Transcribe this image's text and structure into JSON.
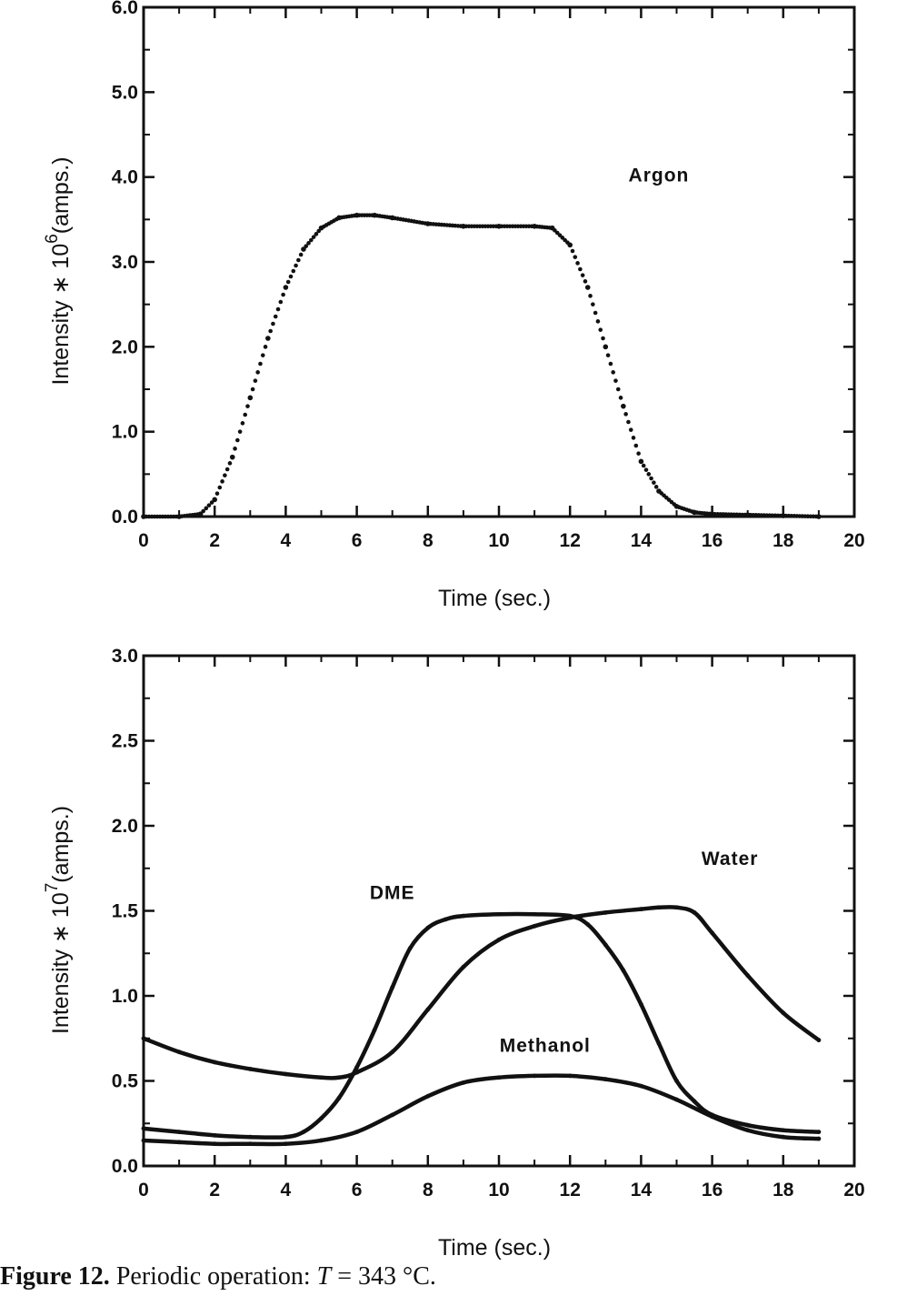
{
  "caption": {
    "label": "Figure 12.",
    "text": "Periodic operation:",
    "variable": "T",
    "value": "= 343 °C."
  },
  "chart_data": [
    {
      "type": "scatter",
      "xlabel": "Time (sec.)",
      "ylabel_parts": {
        "before": "Intensity  ∗ 10",
        "exponent": "6",
        "after": "(amps.)"
      },
      "xlim": [
        0,
        20
      ],
      "ylim": [
        0,
        6
      ],
      "xticks": [
        0,
        2,
        4,
        6,
        8,
        10,
        12,
        14,
        16,
        18,
        20
      ],
      "yticks": [
        0.0,
        1.0,
        2.0,
        3.0,
        4.0,
        5.0,
        6.0
      ],
      "ytick_labels": [
        "0.0",
        "1.0",
        "2.0",
        "3.0",
        "4.0",
        "5.0",
        "6.0"
      ],
      "grid": false,
      "series": [
        {
          "name": "Argon",
          "x": [
            0,
            1.0,
            1.6,
            2.0,
            2.5,
            3.0,
            3.5,
            4.0,
            4.5,
            5.0,
            5.5,
            6.0,
            6.5,
            7.0,
            8.0,
            9.0,
            10.0,
            11.0,
            11.5,
            12.0,
            12.5,
            13.0,
            13.5,
            14.0,
            14.5,
            15.0,
            15.5,
            16.0,
            17.0,
            18.0,
            19.0
          ],
          "y": [
            0.0,
            0.0,
            0.03,
            0.2,
            0.7,
            1.4,
            2.1,
            2.7,
            3.15,
            3.4,
            3.52,
            3.55,
            3.55,
            3.52,
            3.45,
            3.42,
            3.42,
            3.42,
            3.4,
            3.2,
            2.7,
            2.0,
            1.3,
            0.65,
            0.3,
            0.12,
            0.05,
            0.03,
            0.02,
            0.01,
            0.0
          ]
        }
      ],
      "annotations": [
        {
          "text": "Argon",
          "x": 14.5,
          "y": 3.95
        }
      ]
    },
    {
      "type": "line",
      "xlabel": "Time (sec.)",
      "ylabel_parts": {
        "before": "Intensity  ∗ 10",
        "exponent": "7",
        "after": "(amps.)"
      },
      "xlim": [
        0,
        20
      ],
      "ylim": [
        0,
        3
      ],
      "xticks": [
        0,
        2,
        4,
        6,
        8,
        10,
        12,
        14,
        16,
        18,
        20
      ],
      "yticks": [
        0.0,
        0.5,
        1.0,
        1.5,
        2.0,
        2.5,
        3.0
      ],
      "ytick_labels": [
        "0.0",
        "0.5",
        "1.0",
        "1.5",
        "2.0",
        "2.5",
        "3.0"
      ],
      "grid": false,
      "series": [
        {
          "name": "DME",
          "x": [
            0,
            1,
            2,
            3,
            4,
            4.5,
            5,
            5.5,
            6,
            6.5,
            7,
            7.5,
            8,
            8.5,
            9,
            10,
            11,
            12,
            12.5,
            13,
            13.5,
            14,
            14.5,
            15,
            15.5,
            16,
            17,
            18,
            19
          ],
          "y": [
            0.22,
            0.2,
            0.18,
            0.17,
            0.17,
            0.2,
            0.28,
            0.4,
            0.58,
            0.8,
            1.05,
            1.28,
            1.4,
            1.45,
            1.47,
            1.48,
            1.48,
            1.47,
            1.42,
            1.3,
            1.15,
            0.95,
            0.72,
            0.5,
            0.38,
            0.3,
            0.24,
            0.21,
            0.2
          ]
        },
        {
          "name": "Water",
          "x": [
            0,
            1,
            2,
            3,
            4,
            5,
            5.5,
            6,
            7,
            8,
            9,
            10,
            11,
            12,
            13,
            14,
            14.5,
            15,
            15.5,
            16,
            17,
            18,
            19
          ],
          "y": [
            0.75,
            0.67,
            0.61,
            0.57,
            0.54,
            0.52,
            0.52,
            0.55,
            0.67,
            0.92,
            1.17,
            1.33,
            1.41,
            1.46,
            1.49,
            1.51,
            1.52,
            1.52,
            1.49,
            1.37,
            1.12,
            0.9,
            0.74
          ]
        },
        {
          "name": "Methanol",
          "x": [
            0,
            1,
            2,
            3,
            4,
            5,
            6,
            7,
            8,
            9,
            10,
            11,
            12,
            13,
            14,
            15,
            16,
            17,
            18,
            19
          ],
          "y": [
            0.15,
            0.14,
            0.13,
            0.13,
            0.13,
            0.15,
            0.2,
            0.3,
            0.41,
            0.49,
            0.52,
            0.53,
            0.53,
            0.51,
            0.47,
            0.39,
            0.29,
            0.21,
            0.17,
            0.16
          ]
        }
      ],
      "annotations": [
        {
          "text": "DME",
          "x": 7.0,
          "y": 1.57
        },
        {
          "text": "Water",
          "x": 16.5,
          "y": 1.77
        },
        {
          "text": "Methanol",
          "x": 11.3,
          "y": 0.67
        }
      ]
    }
  ]
}
